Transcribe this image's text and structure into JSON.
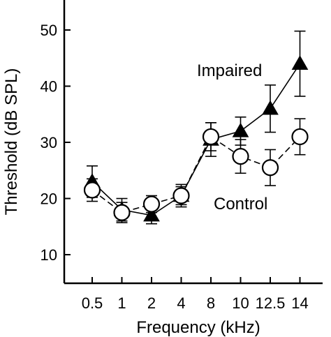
{
  "chart_data": {
    "type": "line",
    "title": "",
    "xlabel": "Frequency (kHz)",
    "ylabel": "Threshold (dB SPL)",
    "categories": [
      "0.5",
      "1",
      "2",
      "4",
      "8",
      "10",
      "12.5",
      "14"
    ],
    "yticks": [
      10,
      20,
      30,
      40,
      50
    ],
    "ylim": [
      5,
      55
    ],
    "grid": false,
    "series": [
      {
        "name": "Impaired",
        "marker": "filled-triangle",
        "line": "solid",
        "values": [
          23.0,
          18.0,
          17.0,
          20.5,
          30.5,
          32.0,
          36.0,
          44.0
        ],
        "error": [
          2.8,
          2.0,
          1.5,
          2.0,
          3.0,
          2.5,
          4.2,
          5.8
        ]
      },
      {
        "name": "Control",
        "marker": "open-circle",
        "line": "dashed",
        "values": [
          21.5,
          17.5,
          19.0,
          20.5,
          31.0,
          27.5,
          25.5,
          31.0
        ],
        "error": [
          2.0,
          1.8,
          1.5,
          1.6,
          2.5,
          3.0,
          3.2,
          3.2
        ]
      }
    ]
  }
}
